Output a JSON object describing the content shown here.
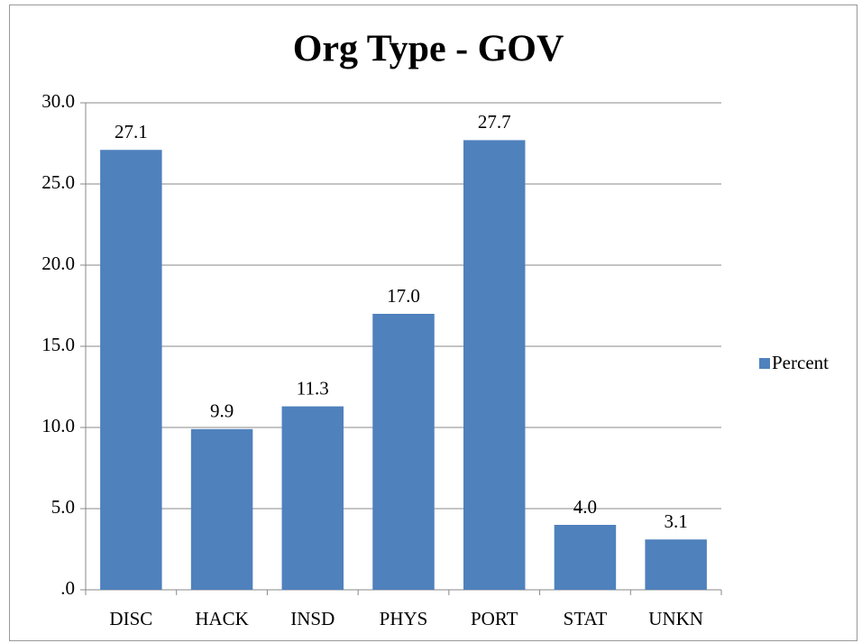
{
  "chart_data": {
    "type": "bar",
    "title": "Org Type - GOV",
    "categories": [
      "DISC",
      "HACK",
      "INSD",
      "PHYS",
      "PORT",
      "STAT",
      "UNKN"
    ],
    "series": [
      {
        "name": "Percent",
        "color": "#4f81bd",
        "values": [
          27.1,
          9.9,
          11.3,
          17.0,
          27.7,
          4.0,
          3.1
        ],
        "value_labels": [
          "27.1",
          "9.9",
          "11.3",
          "17.0",
          "27.7",
          "4.0",
          "3.1"
        ]
      }
    ],
    "ylim": [
      0,
      30
    ],
    "yticks": [
      {
        "value": 0,
        "label": ".0"
      },
      {
        "value": 5,
        "label": "5.0"
      },
      {
        "value": 10,
        "label": "10.0"
      },
      {
        "value": 15,
        "label": "15.0"
      },
      {
        "value": 20,
        "label": "20.0"
      },
      {
        "value": 25,
        "label": "25.0"
      },
      {
        "value": 30,
        "label": "30.0"
      }
    ],
    "grid": true,
    "legend": "right"
  }
}
